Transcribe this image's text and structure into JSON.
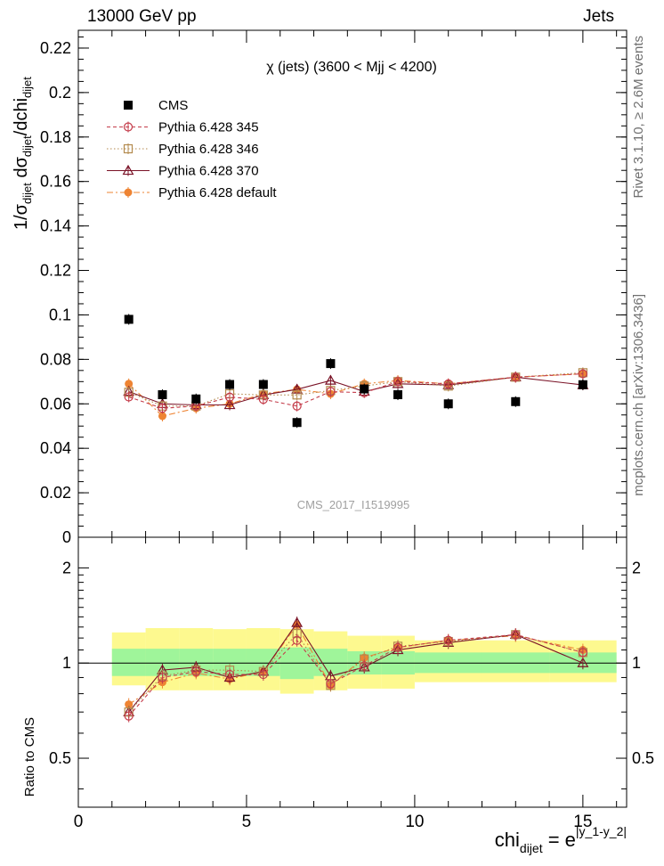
{
  "header": {
    "left": "13000 GeV pp",
    "right": "Jets"
  },
  "side_labels": {
    "rivet": "Rivet 3.1.10, ≥ 2.6M events",
    "mcplots": "mcplots.cern.ch [arXiv:1306.3436]"
  },
  "chart_data": [
    {
      "type": "scatter",
      "panel": "main",
      "title": "χ (jets) (3600 < Mjj < 4200)",
      "watermark": "CMS_2017_I1519995",
      "ylabel": {
        "main": "1/σ",
        "s1": "dijet",
        "mid": " dσ",
        "s2": "dijet",
        "end": "/dchi",
        "s3": "dijet"
      },
      "xlabel": {
        "main": "chi",
        "sub": "dijet",
        "eq": " = e",
        "sup": "|y_1-y_2|"
      },
      "xlim": [
        0,
        16.3
      ],
      "ylim": [
        0,
        0.228
      ],
      "xticks": [
        0,
        5,
        10,
        15
      ],
      "yticks": [
        0,
        0.02,
        0.04,
        0.06,
        0.08,
        0.1,
        0.12,
        0.14,
        0.16,
        0.18,
        0.2,
        0.22
      ],
      "ytick_labels": [
        "0",
        "0.02",
        "0.04",
        "0.06",
        "0.08",
        "0.1",
        "0.12",
        "0.14",
        "0.16",
        "0.18",
        "0.2",
        "0.22"
      ],
      "legend_position": "top-left",
      "x": [
        1.5,
        2.5,
        3.5,
        4.5,
        5.5,
        6.5,
        7.5,
        8.5,
        9.5,
        11,
        13,
        15
      ],
      "series": [
        {
          "name": "CMS",
          "color": "#000000",
          "marker": "filled-square",
          "line": "none",
          "values": [
            0.098,
            0.0641,
            0.0622,
            0.0687,
            0.0687,
            0.0516,
            0.0781,
            0.0667,
            0.0641,
            0.06,
            0.061,
            0.0686
          ]
        },
        {
          "name": "Pythia 6.428 345",
          "color": "#c43c4a",
          "marker": "open-circle",
          "line": "dashed",
          "values": [
            0.0631,
            0.058,
            0.059,
            0.063,
            0.062,
            0.059,
            0.0655,
            0.065,
            0.07,
            0.069,
            0.072,
            0.0735
          ]
        },
        {
          "name": "Pythia 6.428 346",
          "color": "#b38a4e",
          "marker": "open-square",
          "line": "dotted",
          "values": [
            0.0652,
            0.059,
            0.059,
            0.0645,
            0.064,
            0.064,
            0.066,
            0.068,
            0.07,
            0.068,
            0.072,
            0.074
          ]
        },
        {
          "name": "Pythia 6.428 370",
          "color": "#7a1327",
          "marker": "open-triangle",
          "line": "solid",
          "values": [
            0.0655,
            0.06,
            0.0595,
            0.0595,
            0.064,
            0.0665,
            0.0705,
            0.0655,
            0.069,
            0.0685,
            0.072,
            0.0685
          ]
        },
        {
          "name": "Pythia 6.428 default",
          "color": "#ee8433",
          "marker": "filled-circle",
          "line": "dashdot",
          "values": [
            0.069,
            0.0545,
            0.058,
            0.06,
            0.0645,
            0.0665,
            0.0645,
            0.069,
            0.0705,
            0.069,
            0.072,
            0.0735
          ]
        }
      ]
    },
    {
      "type": "scatter",
      "panel": "ratio",
      "ylabel": "Ratio to CMS",
      "ylim": [
        0.35,
        2.5
      ],
      "yscale": "log",
      "yticks": [
        0.5,
        1,
        2
      ],
      "ytick_labels": [
        "0.5",
        "1",
        "2"
      ],
      "xlim": [
        0,
        16.3
      ],
      "xticks": [
        0,
        5,
        10,
        15
      ],
      "xtick_labels": [
        "0",
        "5",
        "10",
        "15"
      ],
      "band_edges": [
        1,
        2,
        3,
        4,
        5,
        6,
        7,
        8,
        9,
        10,
        12,
        14,
        16
      ],
      "band_inner_green": [
        [
          0.91,
          1.11
        ],
        [
          0.91,
          1.11
        ],
        [
          0.91,
          1.11
        ],
        [
          0.91,
          1.11
        ],
        [
          0.91,
          1.11
        ],
        [
          0.89,
          1.12
        ],
        [
          0.91,
          1.11
        ],
        [
          0.92,
          1.09
        ],
        [
          0.92,
          1.09
        ],
        [
          0.93,
          1.08
        ],
        [
          0.93,
          1.08
        ],
        [
          0.93,
          1.08
        ]
      ],
      "band_outer_yellow": [
        [
          0.85,
          1.25
        ],
        [
          0.82,
          1.29
        ],
        [
          0.82,
          1.29
        ],
        [
          0.82,
          1.28
        ],
        [
          0.82,
          1.29
        ],
        [
          0.8,
          1.28
        ],
        [
          0.82,
          1.26
        ],
        [
          0.83,
          1.22
        ],
        [
          0.83,
          1.22
        ],
        [
          0.87,
          1.18
        ],
        [
          0.87,
          1.18
        ],
        [
          0.87,
          1.18
        ]
      ],
      "series": [
        {
          "name": "Pythia 6.428 345",
          "color": "#c43c4a",
          "marker": "open-circle",
          "line": "dashed",
          "values": [
            0.68,
            0.9,
            0.94,
            0.92,
            0.92,
            1.18,
            0.86,
            0.98,
            1.12,
            1.18,
            1.23,
            1.08
          ]
        },
        {
          "name": "Pythia 6.428 346",
          "color": "#b38a4e",
          "marker": "open-square",
          "line": "dotted",
          "values": [
            0.7,
            0.91,
            0.95,
            0.95,
            0.94,
            1.24,
            0.85,
            1.03,
            1.13,
            1.17,
            1.23,
            1.08
          ]
        },
        {
          "name": "Pythia 6.428 370",
          "color": "#7a1327",
          "marker": "open-triangle",
          "line": "solid",
          "values": [
            0.7,
            0.95,
            0.97,
            0.9,
            0.94,
            1.34,
            0.91,
            0.97,
            1.1,
            1.16,
            1.23,
            1.0
          ]
        },
        {
          "name": "Pythia 6.428 default",
          "color": "#ee8433",
          "marker": "filled-circle",
          "line": "dashdot",
          "values": [
            0.74,
            0.87,
            0.93,
            0.89,
            0.94,
            1.32,
            0.85,
            1.04,
            1.12,
            1.18,
            1.22,
            1.1
          ]
        }
      ]
    }
  ]
}
